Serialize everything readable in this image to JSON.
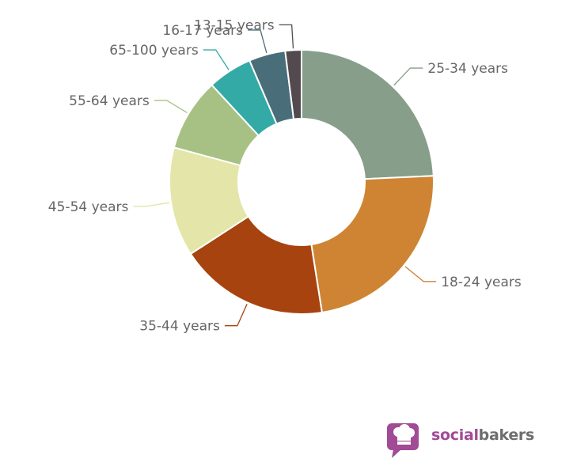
{
  "chart_data": {
    "type": "donut",
    "title": "",
    "slices": [
      {
        "label": "25-34 years",
        "value": 24.5,
        "color": "#879e8a"
      },
      {
        "label": "18-24 years",
        "value": 23.5,
        "color": "#cf8434"
      },
      {
        "label": "35-44 years",
        "value": 18.5,
        "color": "#a7430f"
      },
      {
        "label": "45-54 years",
        "value": 13.5,
        "color": "#e4e5a9"
      },
      {
        "label": "55-64 years",
        "value": 9.0,
        "color": "#a6c183"
      },
      {
        "label": "65-100 years",
        "value": 5.5,
        "color": "#34aaa6"
      },
      {
        "label": "16-17 years",
        "value": 4.5,
        "color": "#496e7a"
      },
      {
        "label": "13-15 years",
        "value": 2.0,
        "color": "#524a4e"
      }
    ]
  },
  "branding": {
    "logo_icon": "chef-hat-speech-bubble-icon",
    "name_part1": "social",
    "name_part2": "bakers",
    "colors": {
      "primary": "#a14a96",
      "secondary": "#6e6e6e"
    }
  }
}
